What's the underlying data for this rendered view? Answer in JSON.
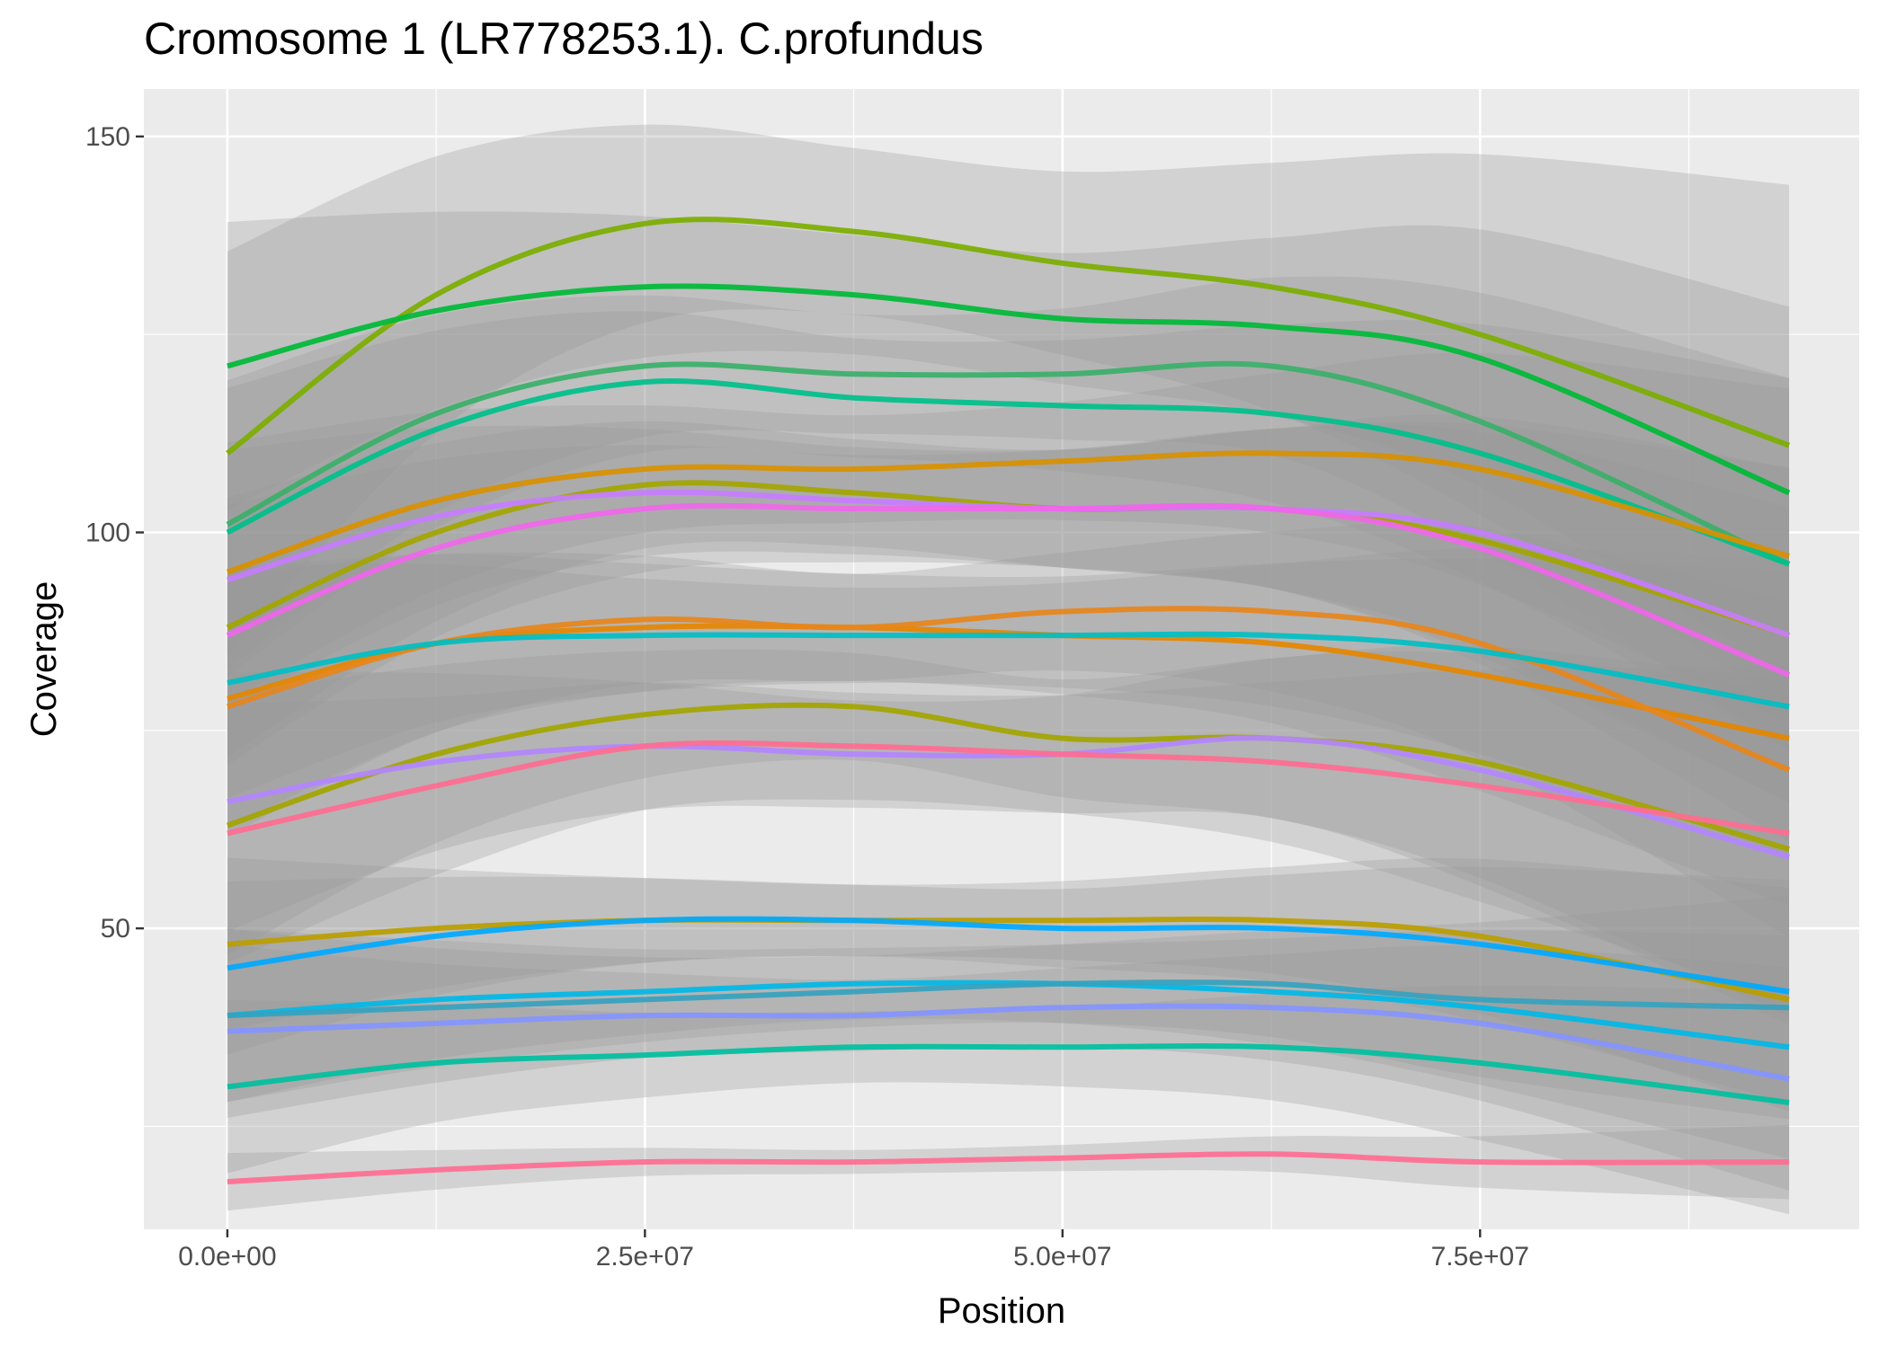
{
  "chart_data": {
    "type": "line",
    "title": "Cromosome 1 (LR778253.1). C.profundus",
    "xlabel": "Position",
    "ylabel": "Coverage",
    "xlim": [
      -5000000,
      97700000
    ],
    "ylim": [
      12,
      156
    ],
    "x_ticks": [
      0,
      25000000,
      50000000,
      75000000
    ],
    "x_tick_labels": [
      "0.0e+00",
      "2.5e+07",
      "5.0e+07",
      "7.5e+07"
    ],
    "y_ticks": [
      50,
      100,
      150
    ],
    "y_tick_labels": [
      "50",
      "100",
      "150"
    ],
    "grid": true,
    "legend": "none",
    "x": [
      0,
      12500000,
      25000000,
      37500000,
      50000000,
      62500000,
      75000000,
      93500000
    ],
    "ribbon_color": "#999999",
    "panel_color": "#ebebeb",
    "series": [
      {
        "color": "#7CAE00",
        "values": [
          110,
          130,
          139,
          138,
          134,
          131,
          125,
          111
        ],
        "band": 14
      },
      {
        "color": "#00BA38",
        "values": [
          121,
          128,
          131,
          130,
          127,
          126,
          122,
          105
        ],
        "band": 10
      },
      {
        "color": "#39B06A",
        "values": [
          101,
          115,
          121,
          120,
          120,
          121,
          114,
          96
        ],
        "band": 10
      },
      {
        "color": "#00C08B",
        "values": [
          100,
          113,
          119,
          117,
          116,
          115,
          110,
          96
        ],
        "band": 10
      },
      {
        "color": "#D89000",
        "values": [
          95,
          104,
          108,
          108,
          109,
          110,
          108,
          97
        ],
        "band": 9
      },
      {
        "color": "#A3A500",
        "values": [
          88,
          100,
          106,
          105,
          103,
          103,
          99,
          87
        ],
        "band": 9
      },
      {
        "color": "#C77CFF",
        "values": [
          94,
          102,
          105,
          104,
          103,
          103,
          100,
          87
        ],
        "band": 9
      },
      {
        "color": "#F066EA",
        "values": [
          87,
          98,
          103,
          103,
          103,
          103,
          98,
          82
        ],
        "band": 9
      },
      {
        "color": "#E58700",
        "values": [
          79,
          86,
          88,
          88,
          87,
          86,
          82,
          74
        ],
        "band": 9
      },
      {
        "color": "#E7861B",
        "values": [
          78,
          86,
          89,
          88,
          90,
          90,
          86,
          70
        ],
        "band": 9
      },
      {
        "color": "#00BFC4",
        "values": [
          81,
          86,
          87,
          87,
          87,
          87,
          85,
          78
        ],
        "band": 8
      },
      {
        "color": "#A3A500",
        "values": [
          63,
          72,
          77,
          78,
          74,
          74,
          71,
          60
        ],
        "band": 9
      },
      {
        "color": "#B385FF",
        "values": [
          66,
          71,
          73,
          72,
          72,
          74,
          70,
          59
        ],
        "band": 9
      },
      {
        "color": "#FF6C91",
        "values": [
          62,
          68,
          73,
          73,
          72,
          71,
          68,
          62
        ],
        "band": 9
      },
      {
        "color": "#BB9D00",
        "values": [
          48,
          50,
          51,
          51,
          51,
          51,
          49,
          41
        ],
        "band": 6
      },
      {
        "color": "#00A9FF",
        "values": [
          45,
          49,
          51,
          51,
          50,
          50,
          48,
          42
        ],
        "band": 6
      },
      {
        "color": "#00B8E7",
        "values": [
          39,
          41,
          42,
          43,
          43,
          42,
          40,
          35
        ],
        "band": 6
      },
      {
        "color": "#35A2BF",
        "values": [
          39,
          40,
          41,
          42,
          43,
          43,
          41,
          40
        ],
        "band": 6
      },
      {
        "color": "#8494FF",
        "values": [
          37,
          38,
          39,
          39,
          40,
          40,
          38,
          31
        ],
        "band": 6
      },
      {
        "color": "#00BFA0",
        "values": [
          30,
          33,
          34,
          35,
          35,
          35,
          33,
          28
        ],
        "band": 6
      },
      {
        "color": "#FF6C91",
        "values": [
          18,
          19.5,
          20.5,
          20.5,
          21,
          21.5,
          20.5,
          20.5
        ],
        "band": 2
      }
    ]
  }
}
